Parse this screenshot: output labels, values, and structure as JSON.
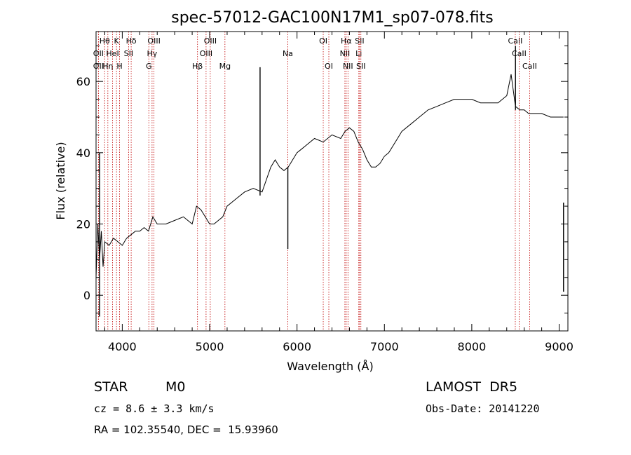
{
  "chart_data": {
    "type": "line",
    "title": "spec-57012-GAC100N17M1_sp07-078.fits",
    "xlabel": "Wavelength (Å)",
    "ylabel": "Flux (relative)",
    "xlim": [
      3700,
      9100
    ],
    "ylim": [
      -10,
      74
    ],
    "x_ticks": [
      4000,
      5000,
      6000,
      7000,
      8000,
      9000
    ],
    "y_ticks": [
      0,
      20,
      40,
      60
    ],
    "x_tick_labels": [
      "4000",
      "5000",
      "6000",
      "7000",
      "8000",
      "9000"
    ],
    "y_tick_labels": [
      "0",
      "20",
      "40",
      "60"
    ],
    "grid": false,
    "line_color": "#000000",
    "marker_line_color": "#c00000",
    "series": [
      {
        "x": [
          3700,
          3720,
          3740,
          3760,
          3780,
          3800,
          3850,
          3900,
          3950,
          4000,
          4050,
          4100,
          4150,
          4200,
          4250,
          4300,
          4350,
          4400,
          4500,
          4600,
          4700,
          4800,
          4850,
          4900,
          4950,
          5000,
          5050,
          5100,
          5150,
          5200,
          5300,
          5400,
          5500,
          5600,
          5700,
          5750,
          5800,
          5850,
          5900,
          5950,
          6000,
          6050,
          6100,
          6200,
          6300,
          6400,
          6500,
          6550,
          6600,
          6650,
          6700,
          6750,
          6800,
          6850,
          6900,
          6950,
          7000,
          7050,
          7100,
          7150,
          7200,
          7300,
          7400,
          7500,
          7600,
          7700,
          7800,
          7900,
          8000,
          8100,
          8200,
          8300,
          8400,
          8450,
          8500,
          8550,
          8600,
          8650,
          8700,
          8800,
          8900,
          9000,
          9050
        ],
        "y": [
          5,
          20,
          10,
          18,
          8,
          15,
          14,
          16,
          15,
          14,
          16,
          17,
          18,
          18,
          19,
          18,
          22,
          20,
          20,
          21,
          22,
          20,
          25,
          24,
          22,
          20,
          20,
          21,
          22,
          25,
          27,
          29,
          30,
          29,
          36,
          38,
          36,
          35,
          36,
          38,
          40,
          41,
          42,
          44,
          43,
          45,
          44,
          46,
          47,
          46,
          43,
          41,
          38,
          36,
          36,
          37,
          39,
          40,
          42,
          44,
          46,
          48,
          50,
          52,
          53,
          54,
          55,
          55,
          55,
          54,
          54,
          54,
          56,
          62,
          53,
          52,
          52,
          51,
          51,
          51,
          50,
          50,
          50
        ]
      }
    ],
    "spikes": [
      {
        "x": 3740,
        "y_from": -6,
        "y_to": 40
      },
      {
        "x": 5577,
        "y_from": 28,
        "y_to": 64
      },
      {
        "x": 5895,
        "y_from": 13,
        "y_to": 36
      },
      {
        "x": 8500,
        "y_from": 52,
        "y_to": 70
      },
      {
        "x": 9050,
        "y_from": 1,
        "y_to": 26
      }
    ],
    "lines": [
      {
        "label": "OII",
        "x": 3727,
        "row": 3
      },
      {
        "label": "Hθ",
        "x": 3798,
        "row": 1
      },
      {
        "label": "OII",
        "x": 3727,
        "row": 2
      },
      {
        "label": "Hη",
        "x": 3835,
        "row": 3
      },
      {
        "label": "HeI",
        "x": 3889,
        "row": 2
      },
      {
        "label": "K",
        "x": 3934,
        "row": 1
      },
      {
        "label": "H",
        "x": 3969,
        "row": 3
      },
      {
        "label": "SII",
        "x": 4072,
        "row": 2
      },
      {
        "label": "Hδ",
        "x": 4102,
        "row": 1
      },
      {
        "label": "G",
        "x": 4304,
        "row": 3
      },
      {
        "label": "Hγ",
        "x": 4341,
        "row": 2
      },
      {
        "label": "OIII",
        "x": 4363,
        "row": 1
      },
      {
        "label": "Hβ",
        "x": 4861,
        "row": 3
      },
      {
        "label": "OIII",
        "x": 4959,
        "row": 2
      },
      {
        "label": "OIII",
        "x": 5007,
        "row": 1
      },
      {
        "label": "Mg",
        "x": 5175,
        "row": 3
      },
      {
        "label": "Na",
        "x": 5894,
        "row": 2
      },
      {
        "label": "OI",
        "x": 6300,
        "row": 1
      },
      {
        "label": "OI",
        "x": 6364,
        "row": 3
      },
      {
        "label": "NII",
        "x": 6548,
        "row": 2
      },
      {
        "label": "Hα",
        "x": 6563,
        "row": 1
      },
      {
        "label": "NII",
        "x": 6583,
        "row": 3
      },
      {
        "label": "Li",
        "x": 6707,
        "row": 2
      },
      {
        "label": "SII",
        "x": 6716,
        "row": 1
      },
      {
        "label": "SII",
        "x": 6731,
        "row": 3
      },
      {
        "label": "CaII",
        "x": 8498,
        "row": 1
      },
      {
        "label": "CaII",
        "x": 8542,
        "row": 2
      },
      {
        "label": "CaII",
        "x": 8662,
        "row": 3
      }
    ]
  },
  "info": {
    "object_class": "STAR",
    "subclass": "M0",
    "cz": "cz = 8.6 ± 3.3 km/s",
    "survey": "LAMOST  DR5",
    "obs_date": "Obs-Date: 20141220",
    "coords": "RA = 102.35540, DEC =  15.93960"
  }
}
